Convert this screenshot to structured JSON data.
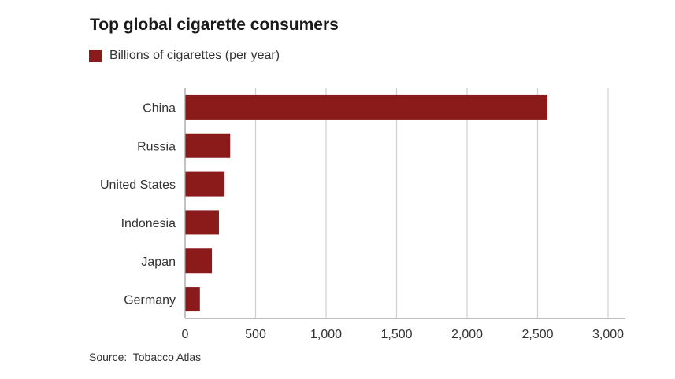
{
  "title": "Top global cigarette consumers",
  "legend": {
    "label": "Billions of cigarettes (per year)"
  },
  "source": "Source:  Tobacco Atlas",
  "colors": {
    "bar": "#8b1a1a",
    "grid": "#d0d0d0",
    "axis": "#9a9a9a",
    "text": "#333333"
  },
  "chart_data": {
    "type": "bar",
    "orientation": "horizontal",
    "title": "Top global cigarette consumers",
    "categories": [
      "China",
      "Russia",
      "United States",
      "Indonesia",
      "Japan",
      "Germany"
    ],
    "series": [
      {
        "name": "Billions of cigarettes (per year)",
        "values": [
          2570,
          320,
          280,
          240,
          190,
          105
        ]
      }
    ],
    "xlim": [
      0,
      3000
    ],
    "xticks": [
      0,
      500,
      1000,
      1500,
      2000,
      2500,
      3000
    ],
    "xtick_labels": [
      "0",
      "500",
      "1,000",
      "1,500",
      "2,000",
      "2,500",
      "3,000"
    ],
    "grid": true,
    "legend_position": "top-left"
  }
}
